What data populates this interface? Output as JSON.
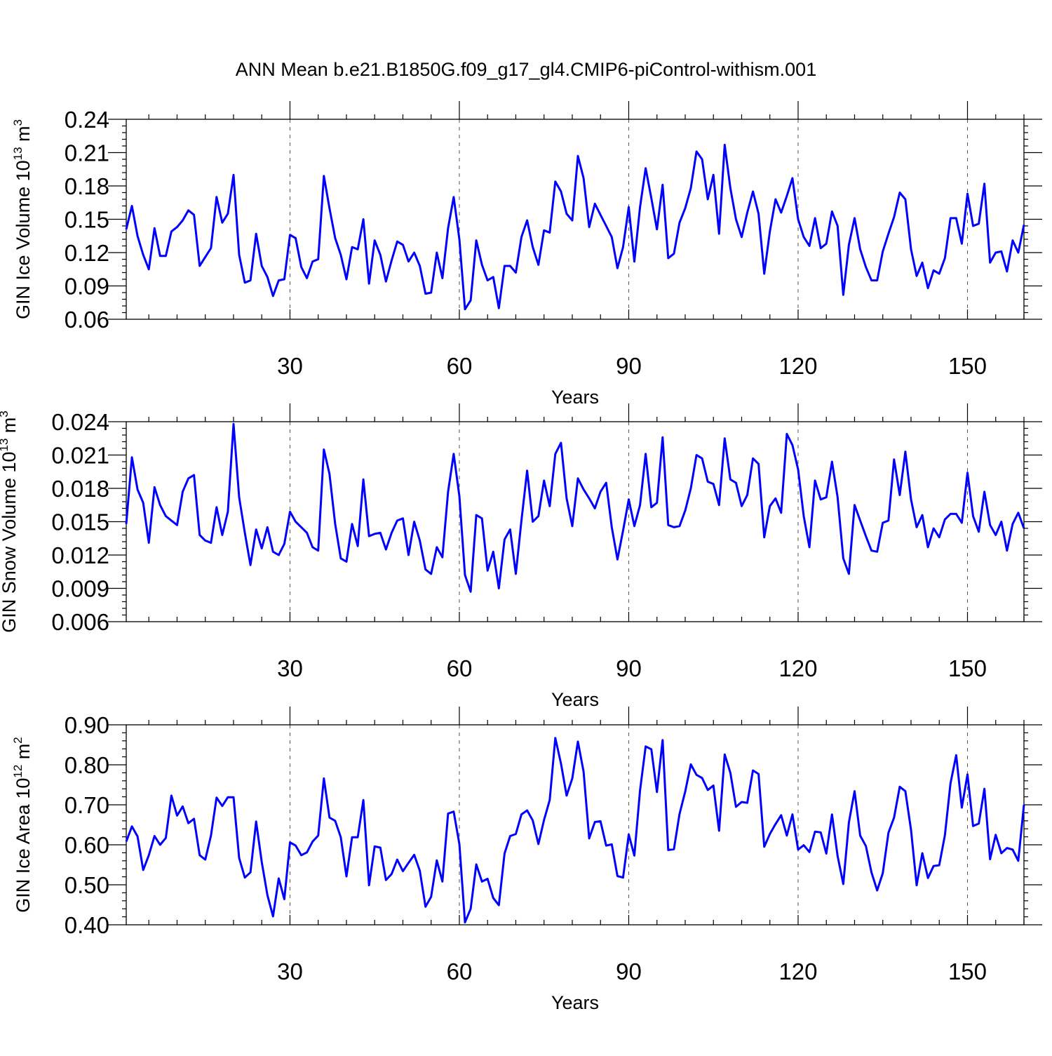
{
  "title": "ANN Mean b.e21.B1850G.f09_g17_gl4.CMIP6-piControl-withism.001",
  "chart_data": [
    {
      "type": "line",
      "ylabel_main": "GIN Ice Volume 10",
      "ylabel_exp": "13",
      "ylabel_unit": " m",
      "ylabel_unit_exp": "3",
      "xlabel": "Years",
      "xlim": [
        1,
        160
      ],
      "ylim": [
        0.06,
        0.24
      ],
      "xticks": [
        30,
        60,
        90,
        120,
        150
      ],
      "xtick_labels": [
        "30",
        "60",
        "90",
        "120",
        "150"
      ],
      "yticks": [
        0.06,
        0.09,
        0.12,
        0.15,
        0.18,
        0.21,
        0.24
      ],
      "ytick_labels": [
        "0.06",
        "0.09",
        "0.12",
        "0.15",
        "0.18",
        "0.21",
        "0.24"
      ],
      "grid": "vertical dashed at major x ticks",
      "color": "#0000ff",
      "values": [
        0.141,
        0.162,
        0.135,
        0.118,
        0.105,
        0.142,
        0.117,
        0.117,
        0.139,
        0.143,
        0.149,
        0.158,
        0.154,
        0.108,
        0.116,
        0.124,
        0.17,
        0.147,
        0.155,
        0.19,
        0.118,
        0.093,
        0.095,
        0.137,
        0.108,
        0.098,
        0.081,
        0.095,
        0.096,
        0.136,
        0.133,
        0.107,
        0.097,
        0.112,
        0.114,
        0.189,
        0.16,
        0.133,
        0.118,
        0.096,
        0.125,
        0.123,
        0.15,
        0.092,
        0.131,
        0.118,
        0.094,
        0.113,
        0.13,
        0.127,
        0.112,
        0.12,
        0.108,
        0.083,
        0.084,
        0.12,
        0.097,
        0.142,
        0.17,
        0.132,
        0.069,
        0.077,
        0.131,
        0.109,
        0.095,
        0.098,
        0.07,
        0.108,
        0.108,
        0.102,
        0.134,
        0.149,
        0.125,
        0.109,
        0.14,
        0.138,
        0.184,
        0.175,
        0.155,
        0.149,
        0.207,
        0.187,
        0.143,
        0.164,
        0.154,
        0.144,
        0.134,
        0.106,
        0.125,
        0.161,
        0.112,
        0.161,
        0.196,
        0.169,
        0.141,
        0.181,
        0.115,
        0.119,
        0.147,
        0.16,
        0.178,
        0.211,
        0.204,
        0.168,
        0.19,
        0.137,
        0.217,
        0.178,
        0.15,
        0.134,
        0.156,
        0.175,
        0.155,
        0.101,
        0.139,
        0.168,
        0.156,
        0.171,
        0.187,
        0.15,
        0.134,
        0.126,
        0.151,
        0.124,
        0.128,
        0.157,
        0.144,
        0.082,
        0.127,
        0.151,
        0.123,
        0.107,
        0.095,
        0.095,
        0.121,
        0.137,
        0.152,
        0.174,
        0.168,
        0.123,
        0.099,
        0.111,
        0.088,
        0.104,
        0.101,
        0.115,
        0.151,
        0.151,
        0.128,
        0.173,
        0.144,
        0.146,
        0.182,
        0.111,
        0.12,
        0.121,
        0.103,
        0.131,
        0.12,
        0.145
      ]
    },
    {
      "type": "line",
      "ylabel_main": "GIN Snow Volume 10",
      "ylabel_exp": "13",
      "ylabel_unit": " m",
      "ylabel_unit_exp": "3",
      "xlabel": "Years",
      "xlim": [
        1,
        160
      ],
      "ylim": [
        0.006,
        0.024
      ],
      "xticks": [
        30,
        60,
        90,
        120,
        150
      ],
      "xtick_labels": [
        "30",
        "60",
        "90",
        "120",
        "150"
      ],
      "yticks": [
        0.006,
        0.009,
        0.012,
        0.015,
        0.018,
        0.021,
        0.024
      ],
      "ytick_labels": [
        "0.006",
        "0.009",
        "0.012",
        "0.015",
        "0.018",
        "0.021",
        "0.024"
      ],
      "grid": "vertical dashed at major x ticks",
      "color": "#0000ff",
      "values": [
        0.0148,
        0.0208,
        0.0179,
        0.0167,
        0.0131,
        0.0181,
        0.0165,
        0.0155,
        0.0151,
        0.0147,
        0.0177,
        0.0189,
        0.0192,
        0.0138,
        0.0133,
        0.0131,
        0.0163,
        0.0138,
        0.0159,
        0.0238,
        0.0172,
        0.014,
        0.0111,
        0.0143,
        0.0126,
        0.0145,
        0.0123,
        0.012,
        0.013,
        0.0159,
        0.015,
        0.0145,
        0.014,
        0.0127,
        0.0124,
        0.0215,
        0.0193,
        0.0148,
        0.0117,
        0.0114,
        0.0148,
        0.0128,
        0.0188,
        0.0137,
        0.0139,
        0.014,
        0.0125,
        0.014,
        0.0151,
        0.0153,
        0.012,
        0.015,
        0.0133,
        0.0107,
        0.0103,
        0.0127,
        0.0118,
        0.0177,
        0.0211,
        0.0173,
        0.0102,
        0.0087,
        0.0156,
        0.0153,
        0.0106,
        0.0123,
        0.009,
        0.0134,
        0.0143,
        0.0103,
        0.0151,
        0.0196,
        0.015,
        0.0155,
        0.0187,
        0.0164,
        0.0211,
        0.0221,
        0.0171,
        0.0146,
        0.0189,
        0.0179,
        0.0171,
        0.0162,
        0.0177,
        0.0185,
        0.0145,
        0.0116,
        0.0142,
        0.017,
        0.0146,
        0.0165,
        0.0211,
        0.0163,
        0.0167,
        0.0226,
        0.0147,
        0.0145,
        0.0146,
        0.016,
        0.018,
        0.021,
        0.0207,
        0.0186,
        0.0184,
        0.0165,
        0.0225,
        0.0188,
        0.0185,
        0.0164,
        0.0174,
        0.0207,
        0.0202,
        0.0136,
        0.0164,
        0.0171,
        0.0158,
        0.0229,
        0.0219,
        0.0197,
        0.0155,
        0.0127,
        0.0187,
        0.017,
        0.0172,
        0.0204,
        0.0172,
        0.0117,
        0.0103,
        0.0165,
        0.0151,
        0.0137,
        0.0124,
        0.0123,
        0.0149,
        0.0151,
        0.0206,
        0.0174,
        0.0213,
        0.017,
        0.0145,
        0.0156,
        0.0127,
        0.0144,
        0.0136,
        0.0152,
        0.0157,
        0.0157,
        0.0149,
        0.0194,
        0.0155,
        0.0141,
        0.0177,
        0.0147,
        0.0138,
        0.015,
        0.0124,
        0.0148,
        0.0158,
        0.0144
      ]
    },
    {
      "type": "line",
      "ylabel_main": "GIN Ice Area 10",
      "ylabel_exp": "12",
      "ylabel_unit": " m",
      "ylabel_unit_exp": "2",
      "xlabel": "Years",
      "xlim": [
        1,
        160
      ],
      "ylim": [
        0.4,
        0.9
      ],
      "xticks": [
        30,
        60,
        90,
        120,
        150
      ],
      "xtick_labels": [
        "30",
        "60",
        "90",
        "120",
        "150"
      ],
      "yticks": [
        0.4,
        0.5,
        0.6,
        0.7,
        0.8,
        0.9
      ],
      "ytick_labels": [
        "0.40",
        "0.50",
        "0.60",
        "0.70",
        "0.80",
        "0.90"
      ],
      "grid": "vertical dashed at major x ticks",
      "color": "#0000ff",
      "values": [
        0.608,
        0.646,
        0.621,
        0.537,
        0.574,
        0.622,
        0.6,
        0.617,
        0.723,
        0.673,
        0.696,
        0.654,
        0.665,
        0.574,
        0.563,
        0.623,
        0.718,
        0.697,
        0.719,
        0.719,
        0.567,
        0.518,
        0.531,
        0.658,
        0.557,
        0.474,
        0.421,
        0.516,
        0.464,
        0.606,
        0.598,
        0.574,
        0.581,
        0.608,
        0.623,
        0.766,
        0.668,
        0.66,
        0.619,
        0.521,
        0.619,
        0.619,
        0.712,
        0.499,
        0.596,
        0.593,
        0.512,
        0.527,
        0.563,
        0.534,
        0.555,
        0.575,
        0.535,
        0.445,
        0.47,
        0.561,
        0.508,
        0.678,
        0.683,
        0.602,
        0.406,
        0.44,
        0.551,
        0.508,
        0.515,
        0.467,
        0.449,
        0.578,
        0.622,
        0.627,
        0.676,
        0.686,
        0.661,
        0.602,
        0.662,
        0.712,
        0.867,
        0.803,
        0.723,
        0.766,
        0.858,
        0.783,
        0.616,
        0.657,
        0.659,
        0.598,
        0.601,
        0.522,
        0.518,
        0.626,
        0.573,
        0.736,
        0.846,
        0.839,
        0.732,
        0.862,
        0.587,
        0.589,
        0.677,
        0.733,
        0.801,
        0.775,
        0.767,
        0.737,
        0.748,
        0.635,
        0.826,
        0.78,
        0.695,
        0.707,
        0.705,
        0.786,
        0.777,
        0.595,
        0.627,
        0.652,
        0.674,
        0.623,
        0.676,
        0.588,
        0.599,
        0.582,
        0.633,
        0.631,
        0.578,
        0.676,
        0.572,
        0.502,
        0.656,
        0.734,
        0.623,
        0.597,
        0.531,
        0.486,
        0.529,
        0.63,
        0.668,
        0.745,
        0.734,
        0.637,
        0.499,
        0.579,
        0.517,
        0.547,
        0.549,
        0.624,
        0.754,
        0.824,
        0.693,
        0.776,
        0.647,
        0.653,
        0.74,
        0.564,
        0.625,
        0.579,
        0.592,
        0.588,
        0.56,
        0.7
      ]
    }
  ]
}
